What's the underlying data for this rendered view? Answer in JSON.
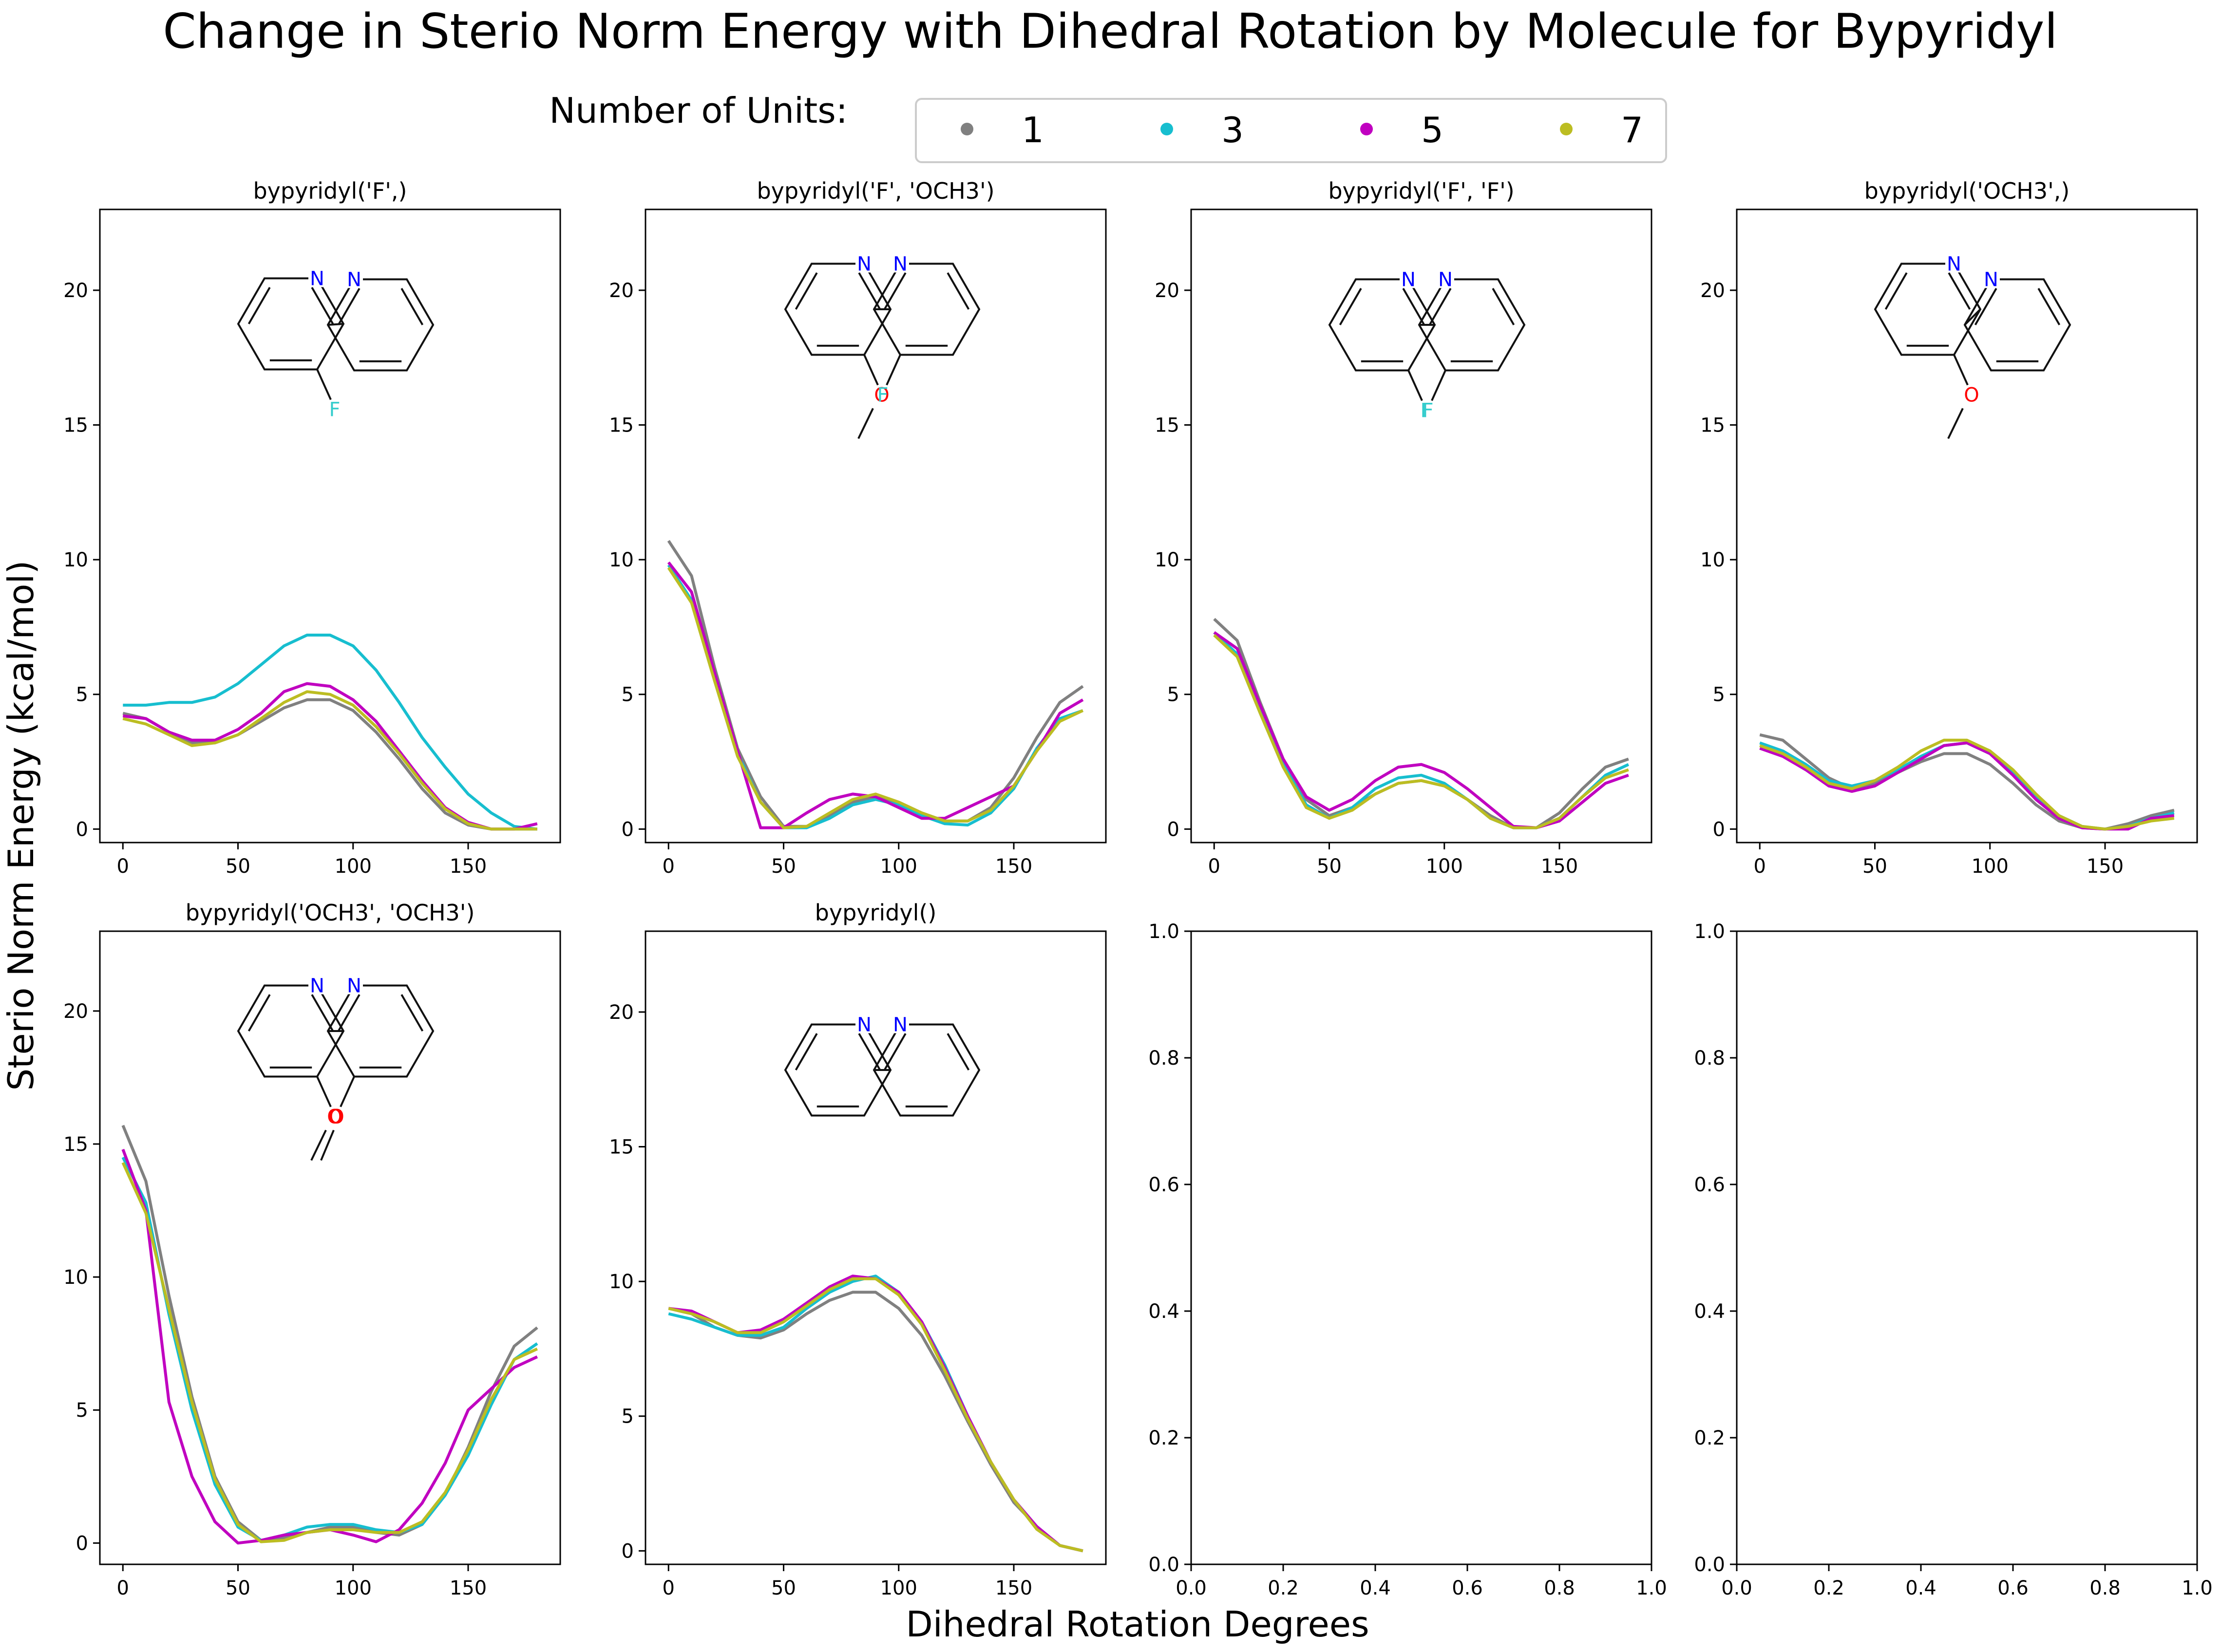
{
  "figure": {
    "title": "Change in Sterio Norm Energy with Dihedral Rotation by Molecule for Bypyridyl",
    "ylabel": "Sterio Norm Energy (kcal/mol)",
    "xlabel": "Dihedral Rotation Degrees",
    "legend": {
      "title": "Number of Units:",
      "placement": "top-center",
      "entries": [
        {
          "label": "1",
          "color": "#808080"
        },
        {
          "label": "3",
          "color": "#17becf"
        },
        {
          "label": "5",
          "color": "#c000c0"
        },
        {
          "label": "7",
          "color": "#bcbd22"
        }
      ]
    }
  },
  "chart_data": [
    {
      "type": "line",
      "title": "bypyridyl('F',)",
      "molecule_labels": [
        "N",
        "N",
        "F"
      ],
      "x": [
        0,
        10,
        20,
        30,
        40,
        50,
        60,
        70,
        80,
        90,
        100,
        110,
        120,
        130,
        140,
        150,
        160,
        170,
        180
      ],
      "xticks": [
        0,
        50,
        100,
        150
      ],
      "yticks": [
        0,
        5,
        10,
        15,
        20
      ],
      "xlim": [
        -10,
        190
      ],
      "ylim": [
        -0.5,
        23
      ],
      "series": [
        {
          "name": "1",
          "color": "#808080",
          "values": [
            4.3,
            4.1,
            3.6,
            3.2,
            3.2,
            3.5,
            4.0,
            4.5,
            4.8,
            4.8,
            4.4,
            3.6,
            2.6,
            1.5,
            0.6,
            0.15,
            0,
            0,
            0
          ]
        },
        {
          "name": "3",
          "color": "#17becf",
          "values": [
            4.6,
            4.6,
            4.7,
            4.7,
            4.9,
            5.4,
            6.1,
            6.8,
            7.2,
            7.2,
            6.8,
            5.9,
            4.7,
            3.4,
            2.3,
            1.3,
            0.6,
            0.1,
            0
          ]
        },
        {
          "name": "5",
          "color": "#c000c0",
          "values": [
            4.2,
            4.1,
            3.6,
            3.3,
            3.3,
            3.7,
            4.3,
            5.1,
            5.4,
            5.3,
            4.8,
            4.0,
            2.9,
            1.8,
            0.8,
            0.25,
            0,
            0,
            0.2
          ]
        },
        {
          "name": "7",
          "color": "#bcbd22",
          "values": [
            4.1,
            3.9,
            3.5,
            3.1,
            3.2,
            3.5,
            4.1,
            4.7,
            5.1,
            5.0,
            4.6,
            3.8,
            2.8,
            1.7,
            0.75,
            0.2,
            0,
            0,
            0
          ]
        }
      ]
    },
    {
      "type": "line",
      "title": "bypyridyl('F', 'OCH3')",
      "molecule_labels": [
        "N",
        "N",
        "O",
        "F"
      ],
      "x": [
        0,
        10,
        20,
        30,
        40,
        50,
        60,
        70,
        80,
        90,
        100,
        110,
        120,
        130,
        140,
        150,
        160,
        170,
        180
      ],
      "xticks": [
        0,
        50,
        100,
        150
      ],
      "yticks": [
        0,
        5,
        10,
        15,
        20
      ],
      "xlim": [
        -10,
        190
      ],
      "ylim": [
        -0.5,
        23
      ],
      "series": [
        {
          "name": "1",
          "color": "#808080",
          "values": [
            10.7,
            9.4,
            6.0,
            3.0,
            1.2,
            0.1,
            0.1,
            0.5,
            1.0,
            1.2,
            1.0,
            0.6,
            0.3,
            0.3,
            0.8,
            1.9,
            3.4,
            4.7,
            5.3
          ]
        },
        {
          "name": "3",
          "color": "#17becf",
          "values": [
            9.8,
            8.5,
            5.6,
            2.8,
            1.0,
            0.05,
            0.05,
            0.4,
            0.9,
            1.1,
            0.9,
            0.5,
            0.2,
            0.15,
            0.6,
            1.5,
            3.0,
            4.1,
            4.4
          ]
        },
        {
          "name": "5",
          "color": "#c000c0",
          "values": [
            9.9,
            8.8,
            5.8,
            2.9,
            0.05,
            0.05,
            0.6,
            1.1,
            1.3,
            1.2,
            0.8,
            0.4,
            0.4,
            0.8,
            1.2,
            1.6,
            2.9,
            4.3,
            4.8
          ]
        },
        {
          "name": "7",
          "color": "#bcbd22",
          "values": [
            9.7,
            8.4,
            5.5,
            2.7,
            1.0,
            0.05,
            0.1,
            0.6,
            1.1,
            1.3,
            1.0,
            0.6,
            0.3,
            0.3,
            0.7,
            1.6,
            2.9,
            4.0,
            4.4
          ]
        }
      ]
    },
    {
      "type": "line",
      "title": "bypyridyl('F', 'F')",
      "molecule_labels": [
        "N",
        "N",
        "F",
        "F"
      ],
      "x": [
        0,
        10,
        20,
        30,
        40,
        50,
        60,
        70,
        80,
        90,
        100,
        110,
        120,
        130,
        140,
        150,
        160,
        170,
        180
      ],
      "xticks": [
        0,
        50,
        100,
        150
      ],
      "yticks": [
        0,
        5,
        10,
        15,
        20
      ],
      "xlim": [
        -10,
        190
      ],
      "ylim": [
        -0.5,
        23
      ],
      "series": [
        {
          "name": "1",
          "color": "#808080",
          "values": [
            7.8,
            7.0,
            4.7,
            2.6,
            1.1,
            0.5,
            0.8,
            1.3,
            1.7,
            1.8,
            1.6,
            1.1,
            0.5,
            0.05,
            0.05,
            0.6,
            1.5,
            2.3,
            2.6
          ]
        },
        {
          "name": "3",
          "color": "#17becf",
          "values": [
            7.3,
            6.5,
            4.4,
            2.4,
            0.9,
            0.4,
            0.8,
            1.5,
            1.9,
            2.0,
            1.7,
            1.1,
            0.4,
            0.05,
            0.05,
            0.4,
            1.2,
            2.0,
            2.4
          ]
        },
        {
          "name": "5",
          "color": "#c000c0",
          "values": [
            7.3,
            6.7,
            4.6,
            2.6,
            1.2,
            0.7,
            1.1,
            1.8,
            2.3,
            2.4,
            2.1,
            1.5,
            0.8,
            0.1,
            0.05,
            0.3,
            1.0,
            1.7,
            2.0
          ]
        },
        {
          "name": "7",
          "color": "#bcbd22",
          "values": [
            7.2,
            6.4,
            4.3,
            2.3,
            0.8,
            0.4,
            0.7,
            1.3,
            1.7,
            1.8,
            1.6,
            1.1,
            0.4,
            0.05,
            0.05,
            0.4,
            1.2,
            1.9,
            2.2
          ]
        }
      ]
    },
    {
      "type": "line",
      "title": "bypyridyl('OCH3',)",
      "molecule_labels": [
        "N",
        "N",
        "O"
      ],
      "x": [
        0,
        10,
        20,
        30,
        40,
        50,
        60,
        70,
        80,
        90,
        100,
        110,
        120,
        130,
        140,
        150,
        160,
        170,
        180
      ],
      "xticks": [
        0,
        50,
        100,
        150
      ],
      "yticks": [
        0,
        5,
        10,
        15,
        20
      ],
      "xlim": [
        -10,
        190
      ],
      "ylim": [
        -0.5,
        23
      ],
      "series": [
        {
          "name": "1",
          "color": "#808080",
          "values": [
            3.5,
            3.3,
            2.6,
            1.9,
            1.5,
            1.7,
            2.1,
            2.5,
            2.8,
            2.8,
            2.4,
            1.7,
            0.9,
            0.3,
            0.05,
            0,
            0.2,
            0.5,
            0.7
          ]
        },
        {
          "name": "3",
          "color": "#17becf",
          "values": [
            3.2,
            2.9,
            2.4,
            1.8,
            1.6,
            1.8,
            2.2,
            2.7,
            3.1,
            3.2,
            2.8,
            2.1,
            1.2,
            0.5,
            0.1,
            0,
            0.1,
            0.4,
            0.6
          ]
        },
        {
          "name": "5",
          "color": "#c000c0",
          "values": [
            3.0,
            2.7,
            2.2,
            1.6,
            1.4,
            1.6,
            2.1,
            2.6,
            3.1,
            3.2,
            2.8,
            2.0,
            1.1,
            0.4,
            0.05,
            0,
            0,
            0.4,
            0.5
          ]
        },
        {
          "name": "7",
          "color": "#bcbd22",
          "values": [
            3.1,
            2.8,
            2.3,
            1.7,
            1.5,
            1.8,
            2.3,
            2.9,
            3.3,
            3.3,
            2.9,
            2.2,
            1.3,
            0.5,
            0.1,
            0,
            0.1,
            0.3,
            0.4
          ]
        }
      ]
    },
    {
      "type": "line",
      "title": "bypyridyl('OCH3', 'OCH3')",
      "molecule_labels": [
        "N",
        "N",
        "O",
        "O"
      ],
      "x": [
        0,
        10,
        20,
        30,
        40,
        50,
        60,
        70,
        80,
        90,
        100,
        110,
        120,
        130,
        140,
        150,
        160,
        170,
        180
      ],
      "xticks": [
        0,
        50,
        100,
        150
      ],
      "yticks": [
        0,
        5,
        10,
        15,
        20
      ],
      "xlim": [
        -10,
        190
      ],
      "ylim": [
        -0.8,
        23
      ],
      "series": [
        {
          "name": "1",
          "color": "#808080",
          "values": [
            15.7,
            13.6,
            9.3,
            5.5,
            2.5,
            0.8,
            0.1,
            0.2,
            0.4,
            0.6,
            0.6,
            0.4,
            0.3,
            0.7,
            1.8,
            3.6,
            5.7,
            7.4,
            8.1
          ]
        },
        {
          "name": "3",
          "color": "#17becf",
          "values": [
            14.5,
            12.8,
            8.6,
            5.0,
            2.2,
            0.6,
            0.1,
            0.3,
            0.6,
            0.7,
            0.7,
            0.5,
            0.4,
            0.7,
            1.8,
            3.3,
            5.2,
            6.9,
            7.5
          ]
        },
        {
          "name": "5",
          "color": "#c000c0",
          "values": [
            14.8,
            12.5,
            5.3,
            2.5,
            0.8,
            0,
            0.1,
            0.3,
            0.4,
            0.5,
            0.3,
            0.05,
            0.5,
            1.5,
            3.0,
            5.0,
            5.8,
            6.6,
            7.0
          ]
        },
        {
          "name": "7",
          "color": "#bcbd22",
          "values": [
            14.3,
            12.4,
            8.8,
            5.3,
            2.4,
            0.7,
            0.05,
            0.1,
            0.4,
            0.5,
            0.5,
            0.4,
            0.4,
            0.8,
            1.9,
            3.5,
            5.4,
            6.9,
            7.3
          ]
        }
      ]
    },
    {
      "type": "line",
      "title": "bypyridyl()",
      "molecule_labels": [
        "N",
        "N"
      ],
      "x": [
        0,
        10,
        20,
        30,
        40,
        50,
        60,
        70,
        80,
        90,
        100,
        110,
        120,
        130,
        140,
        150,
        160,
        170,
        180
      ],
      "xticks": [
        0,
        50,
        100,
        150
      ],
      "yticks": [
        0,
        5,
        10,
        15,
        20
      ],
      "xlim": [
        -10,
        190
      ],
      "ylim": [
        -0.5,
        23
      ],
      "series": [
        {
          "name": "1",
          "color": "#808080",
          "values": [
            9.0,
            8.8,
            8.3,
            8.0,
            7.9,
            8.2,
            8.8,
            9.3,
            9.6,
            9.6,
            9.0,
            8.0,
            6.5,
            4.8,
            3.2,
            1.8,
            0.9,
            0.2,
            0
          ]
        },
        {
          "name": "3",
          "color": "#17becf",
          "values": [
            8.8,
            8.6,
            8.3,
            8.0,
            8.0,
            8.3,
            9.0,
            9.6,
            10.0,
            10.2,
            9.6,
            8.5,
            6.9,
            5.0,
            3.3,
            1.9,
            0.9,
            0.2,
            0
          ]
        },
        {
          "name": "5",
          "color": "#c000c0",
          "values": [
            9.0,
            8.9,
            8.5,
            8.1,
            8.2,
            8.6,
            9.2,
            9.8,
            10.2,
            10.1,
            9.6,
            8.5,
            6.8,
            5.0,
            3.3,
            1.9,
            0.9,
            0.2,
            0
          ]
        },
        {
          "name": "7",
          "color": "#bcbd22",
          "values": [
            9.0,
            8.8,
            8.5,
            8.1,
            8.1,
            8.5,
            9.1,
            9.7,
            10.1,
            10.1,
            9.5,
            8.4,
            6.7,
            4.9,
            3.3,
            1.9,
            0.8,
            0.2,
            0
          ]
        }
      ]
    },
    {
      "type": "line",
      "title": "",
      "series": [],
      "xticks": [
        "0.0",
        "0.2",
        "0.4",
        "0.6",
        "0.8",
        "1.0"
      ],
      "yticks": [
        "0.0",
        "0.2",
        "0.4",
        "0.6",
        "0.8",
        "1.0"
      ],
      "xlim": [
        0,
        1
      ],
      "ylim": [
        0,
        1
      ]
    },
    {
      "type": "line",
      "title": "",
      "series": [],
      "xticks": [
        "0.0",
        "0.2",
        "0.4",
        "0.6",
        "0.8",
        "1.0"
      ],
      "yticks": [
        "0.0",
        "0.2",
        "0.4",
        "0.6",
        "0.8",
        "1.0"
      ],
      "xlim": [
        0,
        1
      ],
      "ylim": [
        0,
        1
      ]
    }
  ]
}
